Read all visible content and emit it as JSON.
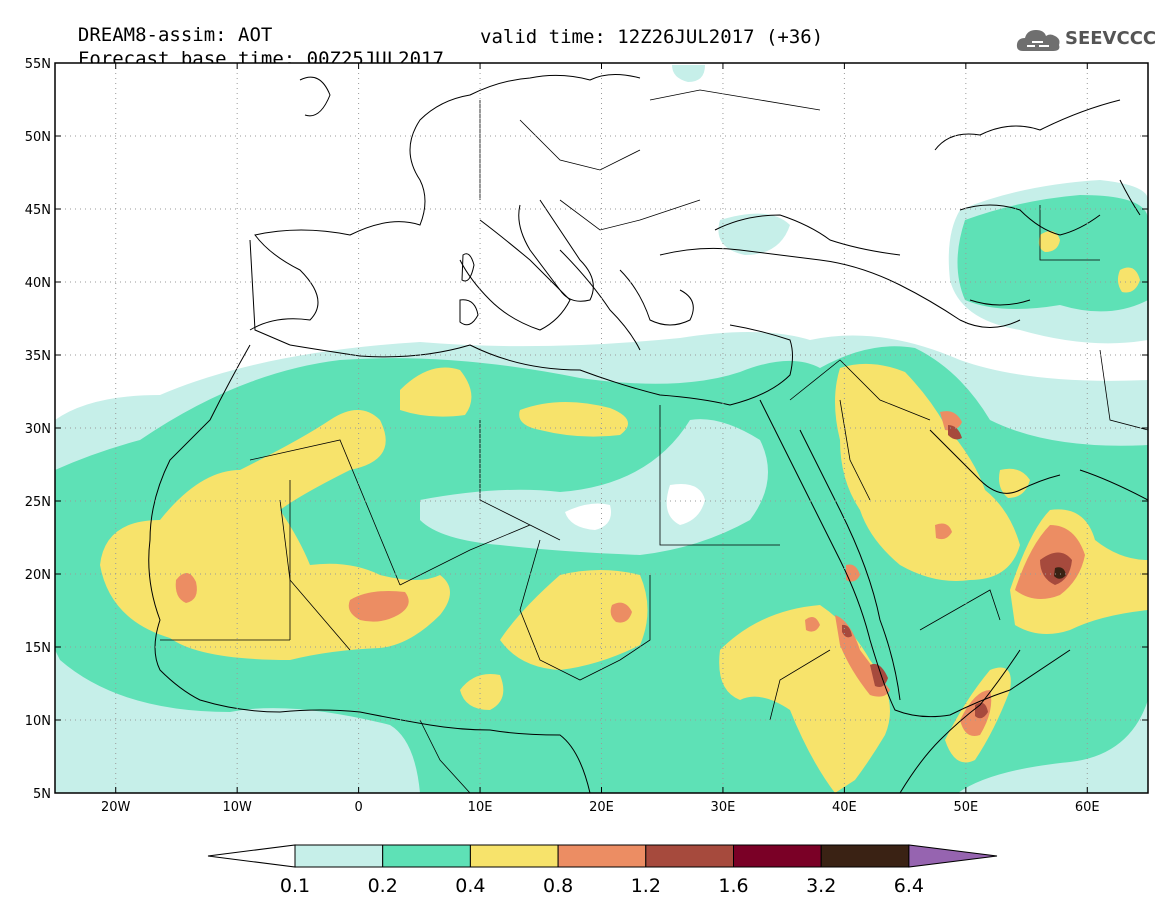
{
  "title": {
    "line1": "DREAM8-assim: AOT",
    "line2_base": "Forecast base time: 00Z25JUL2017",
    "line2_valid": "valid time: 12Z26JUL2017 (+36)"
  },
  "logo": {
    "text": "SEEVCCC",
    "icon": "cloud-icon"
  },
  "map_axes": {
    "lon_range": [
      -25,
      65
    ],
    "lat_range": [
      5,
      55
    ],
    "lat_ticks": [
      {
        "value": 55,
        "label": "55N"
      },
      {
        "value": 50,
        "label": "50N"
      },
      {
        "value": 45,
        "label": "45N"
      },
      {
        "value": 40,
        "label": "40N"
      },
      {
        "value": 35,
        "label": "35N"
      },
      {
        "value": 30,
        "label": "30N"
      },
      {
        "value": 25,
        "label": "25N"
      },
      {
        "value": 20,
        "label": "20N"
      },
      {
        "value": 15,
        "label": "15N"
      },
      {
        "value": 10,
        "label": "10N"
      },
      {
        "value": 5,
        "label": "5N"
      }
    ],
    "lon_ticks": [
      {
        "value": -20,
        "label": "20W"
      },
      {
        "value": -10,
        "label": "10W"
      },
      {
        "value": 0,
        "label": "0"
      },
      {
        "value": 10,
        "label": "10E"
      },
      {
        "value": 20,
        "label": "20E"
      },
      {
        "value": 30,
        "label": "30E"
      },
      {
        "value": 40,
        "label": "40E"
      },
      {
        "value": 50,
        "label": "50E"
      },
      {
        "value": 60,
        "label": "60E"
      }
    ],
    "grid": "dotted"
  },
  "colorbar": {
    "bins": [
      {
        "color": "#c6efe9"
      },
      {
        "color": "#5ee1b6"
      },
      {
        "color": "#f7e36b"
      },
      {
        "color": "#ec8d63"
      },
      {
        "color": "#a64a3d"
      },
      {
        "color": "#7a0026"
      },
      {
        "color": "#3a2214"
      }
    ],
    "under_color": "#ffffff",
    "over_color": "#9664b0",
    "labels": [
      "0.1",
      "0.2",
      "0.4",
      "0.8",
      "1.2",
      "1.6",
      "3.2",
      "6.4"
    ]
  }
}
